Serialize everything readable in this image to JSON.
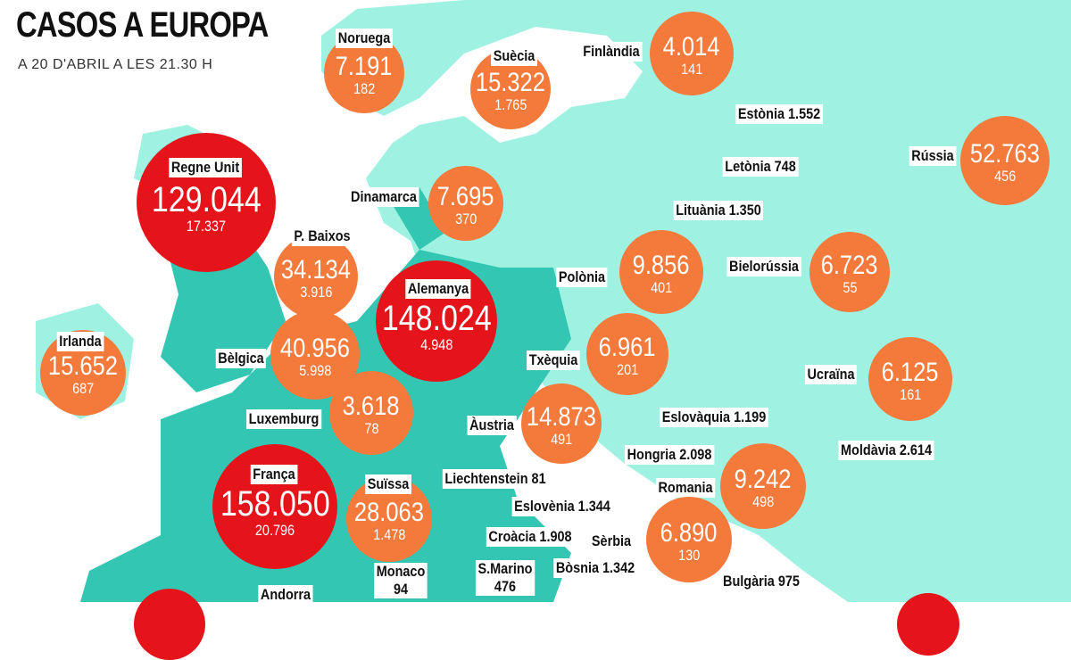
{
  "header": {
    "title": "CASOS A EUROPA",
    "subtitle": "A 20 D'ABRIL A LES 21.30 H"
  },
  "colors": {
    "land_light": "#9ff2e2",
    "land_dark": "#33c6b2",
    "circle_orange": "#f47a3c",
    "circle_red": "#e5141b"
  },
  "countries": [
    {
      "name": "Noruega",
      "cases": "7.191",
      "deaths": "182",
      "style": "orange"
    },
    {
      "name": "Suècia",
      "cases": "15.322",
      "deaths": "1.765",
      "style": "orange"
    },
    {
      "name": "Finlàndia",
      "cases": "4.014",
      "deaths": "141",
      "style": "orange"
    },
    {
      "name": "Rússia",
      "cases": "52.763",
      "deaths": "456",
      "style": "orange"
    },
    {
      "name": "Regne Unit",
      "cases": "129.044",
      "deaths": "17.337",
      "style": "red"
    },
    {
      "name": "Dinamarca",
      "cases": "7.695",
      "deaths": "370",
      "style": "orange"
    },
    {
      "name": "P. Baixos",
      "cases": "34.134",
      "deaths": "3.916",
      "style": "orange"
    },
    {
      "name": "Alemanya",
      "cases": "148.024",
      "deaths": "4.948",
      "style": "red"
    },
    {
      "name": "Polònia",
      "cases": "9.856",
      "deaths": "401",
      "style": "orange"
    },
    {
      "name": "Bielorússia",
      "cases": "6.723",
      "deaths": "55",
      "style": "orange"
    },
    {
      "name": "Irlanda",
      "cases": "15.652",
      "deaths": "687",
      "style": "orange"
    },
    {
      "name": "Bèlgica",
      "cases": "40.956",
      "deaths": "5.998",
      "style": "orange"
    },
    {
      "name": "Txèquia",
      "cases": "6.961",
      "deaths": "201",
      "style": "orange"
    },
    {
      "name": "Ucraïna",
      "cases": "6.125",
      "deaths": "161",
      "style": "orange"
    },
    {
      "name": "Luxemburg",
      "cases": "3.618",
      "deaths": "78",
      "style": "orange"
    },
    {
      "name": "Àustria",
      "cases": "14.873",
      "deaths": "491",
      "style": "orange"
    },
    {
      "name": "França",
      "cases": "158.050",
      "deaths": "20.796",
      "style": "red"
    },
    {
      "name": "Suïssa",
      "cases": "28.063",
      "deaths": "1.478",
      "style": "orange"
    },
    {
      "name": "Romania",
      "cases": "9.242",
      "deaths": "498",
      "style": "orange"
    },
    {
      "name": "Sèrbia",
      "cases": "6.890",
      "deaths": "130",
      "style": "orange"
    }
  ],
  "text_labels": [
    {
      "name": "Estònia",
      "cases": "1.552"
    },
    {
      "name": "Letònia",
      "cases": "748"
    },
    {
      "name": "Lituània",
      "cases": "1.350"
    },
    {
      "name": "Eslovàquia",
      "cases": "1.199"
    },
    {
      "name": "Hongria",
      "cases": "2.098"
    },
    {
      "name": "Moldàvia",
      "cases": "2.614"
    },
    {
      "name": "Liechtenstein",
      "cases": "81"
    },
    {
      "name": "Eslovènia",
      "cases": "1.344"
    },
    {
      "name": "Croàcia",
      "cases": "1.908"
    },
    {
      "name": "S.Marino",
      "cases": "476"
    },
    {
      "name": "Bòsnia",
      "cases": "1.342"
    },
    {
      "name": "Monaco",
      "cases": "94"
    },
    {
      "name": "Bulgària",
      "cases": "975"
    },
    {
      "name": "Andorra",
      "cases": ""
    }
  ]
}
